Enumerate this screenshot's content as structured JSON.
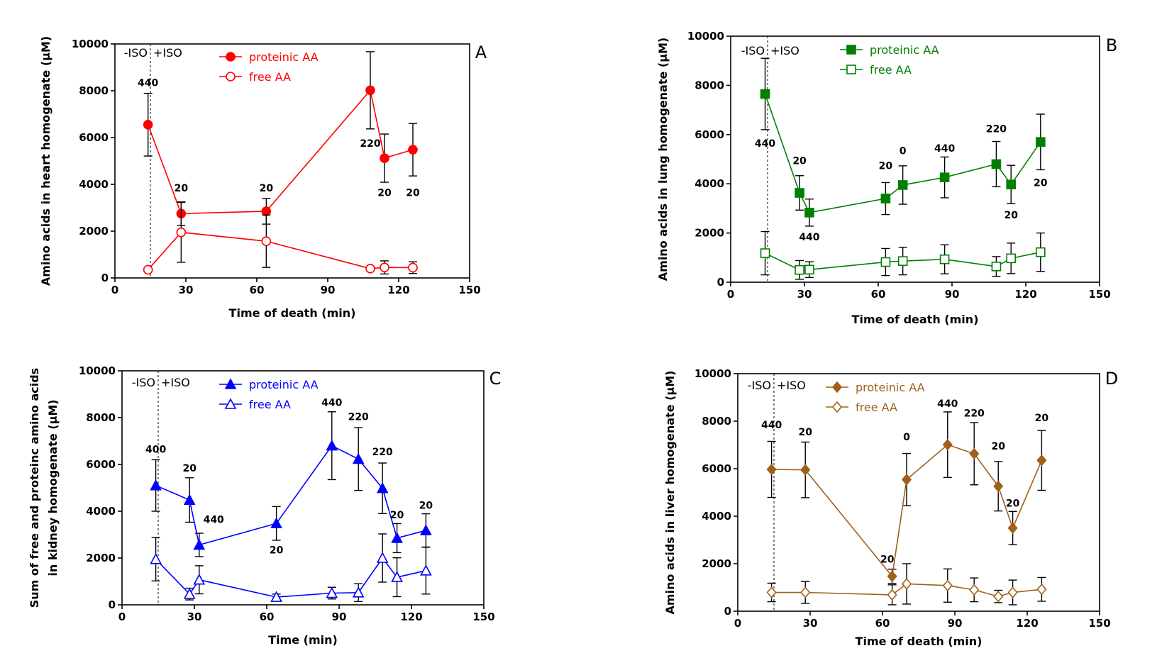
{
  "chart_data": [
    {
      "panel": "A",
      "type": "line",
      "color": "#ff0000",
      "marker": "circle",
      "xlabel": "Time of death (min)",
      "ylabel": "Amino acids in heart homogenate (μM)",
      "xlim": [
        0,
        150
      ],
      "ylim": [
        0,
        10000
      ],
      "xticks": [
        0,
        30,
        60,
        90,
        120,
        150
      ],
      "yticks": [
        0,
        2000,
        4000,
        6000,
        8000,
        10000
      ],
      "iso_x": 15,
      "iso_labels": [
        "-ISO",
        "+ISO"
      ],
      "series": [
        {
          "name": "proteinic AA",
          "filled": true,
          "x": [
            14,
            28,
            64,
            108,
            114,
            126
          ],
          "y": [
            6550,
            2750,
            2850,
            8020,
            5120,
            5480
          ],
          "err": [
            1340,
            500,
            550,
            1650,
            1030,
            1120
          ]
        },
        {
          "name": "free AA",
          "filled": false,
          "x": [
            14,
            28,
            64,
            108,
            114,
            126
          ],
          "y": [
            350,
            1950,
            1570,
            400,
            450,
            440
          ],
          "err": [
            0,
            1280,
            1120,
            0,
            280,
            250
          ]
        }
      ],
      "annotations": [
        {
          "text": "440",
          "x": 14,
          "y": 8200
        },
        {
          "text": "20",
          "x": 28,
          "y": 3700
        },
        {
          "text": "20",
          "x": 64,
          "y": 3700
        },
        {
          "text": "220",
          "x": 108,
          "y": 5600
        },
        {
          "text": "20",
          "x": 114,
          "y": 3500
        },
        {
          "text": "20",
          "x": 126,
          "y": 3500
        }
      ]
    },
    {
      "panel": "B",
      "type": "line",
      "color": "#008000",
      "marker": "square",
      "xlabel": "Time of death (min)",
      "ylabel": "Amino acids in lung homogenate (μM)",
      "xlim": [
        0,
        150
      ],
      "ylim": [
        0,
        10000
      ],
      "xticks": [
        0,
        30,
        60,
        90,
        120,
        150
      ],
      "yticks": [
        0,
        2000,
        4000,
        6000,
        8000,
        10000
      ],
      "iso_x": 15,
      "iso_labels": [
        "-ISO",
        "+ISO"
      ],
      "series": [
        {
          "name": "proteinic AA",
          "filled": true,
          "x": [
            14,
            28,
            32,
            63,
            70,
            87,
            108,
            114,
            126
          ],
          "y": [
            7650,
            3630,
            2830,
            3400,
            3950,
            4260,
            4800,
            3970,
            5700
          ],
          "err": [
            1450,
            700,
            550,
            650,
            780,
            830,
            920,
            780,
            1130
          ]
        },
        {
          "name": "free AA",
          "filled": false,
          "x": [
            14,
            28,
            32,
            63,
            70,
            87,
            108,
            114,
            126
          ],
          "y": [
            1180,
            500,
            510,
            820,
            860,
            930,
            640,
            970,
            1220
          ],
          "err": [
            880,
            380,
            320,
            550,
            560,
            590,
            400,
            620,
            780
          ]
        }
      ],
      "annotations": [
        {
          "text": "440",
          "x": 14,
          "y": 5500
        },
        {
          "text": "20",
          "x": 28,
          "y": 4800
        },
        {
          "text": "440",
          "x": 32,
          "y": 1700
        },
        {
          "text": "20",
          "x": 63,
          "y": 4600
        },
        {
          "text": "0",
          "x": 70,
          "y": 5200
        },
        {
          "text": "440",
          "x": 87,
          "y": 5300
        },
        {
          "text": "220",
          "x": 108,
          "y": 6100
        },
        {
          "text": "20",
          "x": 114,
          "y": 2600
        },
        {
          "text": "20",
          "x": 126,
          "y": 3900
        }
      ]
    },
    {
      "panel": "C",
      "type": "line",
      "color": "#0000ff",
      "marker": "triangle",
      "xlabel": "Time (min)",
      "ylabel": "Sum of free and proteinc amino acids",
      "ylabel2": "in kidney homogenate (μM)",
      "xlim": [
        0,
        150
      ],
      "ylim": [
        0,
        10000
      ],
      "xticks": [
        0,
        30,
        60,
        90,
        120,
        150
      ],
      "yticks": [
        0,
        2000,
        4000,
        6000,
        8000,
        10000
      ],
      "iso_x": 15,
      "iso_labels": [
        "-ISO",
        "+ISO"
      ],
      "series": [
        {
          "name": "proteinic AA",
          "filled": true,
          "x": [
            14,
            28,
            32,
            64,
            87,
            98,
            108,
            114,
            126
          ],
          "y": [
            5100,
            4480,
            2560,
            3480,
            6800,
            6230,
            4980,
            2850,
            3180
          ],
          "err": [
            1100,
            950,
            500,
            720,
            1450,
            1340,
            1080,
            620,
            710
          ]
        },
        {
          "name": "free AA",
          "filled": false,
          "x": [
            14,
            28,
            32,
            64,
            87,
            98,
            108,
            114,
            126
          ],
          "y": [
            1950,
            460,
            1070,
            330,
            500,
            520,
            2000,
            1180,
            1460
          ],
          "err": [
            930,
            250,
            600,
            130,
            250,
            380,
            1030,
            830,
            1000
          ]
        }
      ],
      "annotations": [
        {
          "text": "400",
          "x": 14,
          "y": 6500
        },
        {
          "text": "20",
          "x": 28,
          "y": 5700
        },
        {
          "text": "440",
          "x": 38,
          "y": 3500
        },
        {
          "text": "20",
          "x": 64,
          "y": 2200
        },
        {
          "text": "440",
          "x": 87,
          "y": 8500
        },
        {
          "text": "220",
          "x": 98,
          "y": 7900
        },
        {
          "text": "220",
          "x": 108,
          "y": 6400
        },
        {
          "text": "20",
          "x": 114,
          "y": 3700
        },
        {
          "text": "20",
          "x": 126,
          "y": 4100
        }
      ]
    },
    {
      "panel": "D",
      "type": "line",
      "color": "#a0601a",
      "marker": "diamond",
      "xlabel": "Time of death (min)",
      "ylabel": "Amino acids in liver homogenate (μM)",
      "xlim": [
        0,
        150
      ],
      "ylim": [
        0,
        10000
      ],
      "xticks": [
        0,
        30,
        60,
        90,
        120,
        150
      ],
      "yticks": [
        0,
        2000,
        4000,
        6000,
        8000,
        10000
      ],
      "iso_x": 15,
      "iso_labels": [
        "-ISO",
        "+ISO"
      ],
      "series": [
        {
          "name": "proteinic AA",
          "filled": true,
          "x": [
            14,
            28,
            64,
            70,
            87,
            98,
            108,
            114,
            126
          ],
          "y": [
            5970,
            5950,
            1470,
            5540,
            7010,
            6630,
            5260,
            3500,
            6350
          ],
          "err": [
            1180,
            1170,
            300,
            1100,
            1380,
            1310,
            1040,
            700,
            1260
          ]
        },
        {
          "name": "free AA",
          "filled": false,
          "x": [
            14,
            28,
            64,
            70,
            87,
            98,
            108,
            114,
            126
          ],
          "y": [
            790,
            790,
            690,
            1150,
            1080,
            900,
            620,
            790,
            920
          ],
          "err": [
            390,
            460,
            420,
            850,
            700,
            500,
            260,
            520,
            500
          ]
        }
      ],
      "annotations": [
        {
          "text": "440",
          "x": 14,
          "y": 7700
        },
        {
          "text": "20",
          "x": 28,
          "y": 7400
        },
        {
          "text": "20",
          "x": 62,
          "y": 2050
        },
        {
          "text": "0",
          "x": 70,
          "y": 7200
        },
        {
          "text": "440",
          "x": 87,
          "y": 8600
        },
        {
          "text": "220",
          "x": 98,
          "y": 8200
        },
        {
          "text": "20",
          "x": 108,
          "y": 6800
        },
        {
          "text": "20",
          "x": 114,
          "y": 4400
        },
        {
          "text": "20",
          "x": 126,
          "y": 8000
        }
      ]
    }
  ]
}
